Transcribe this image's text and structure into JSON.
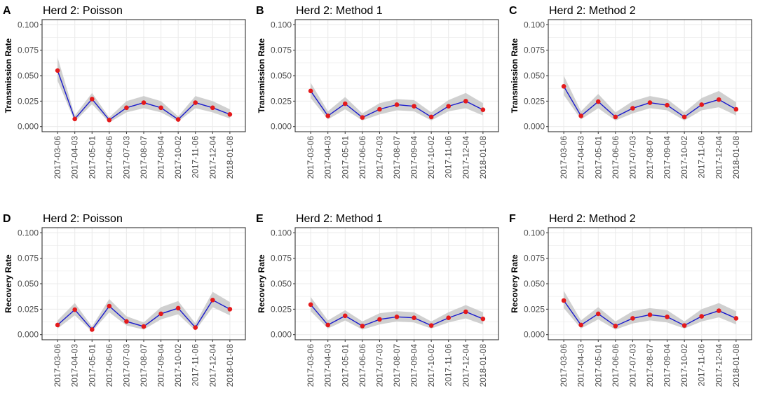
{
  "chart_data": [
    {
      "type": "line",
      "label": "A",
      "title": "Herd 2: Poisson",
      "ylabel": "Transmission Rate",
      "ylim": [
        0,
        0.1
      ],
      "yticks": [
        "0.000",
        "0.025",
        "0.050",
        "0.075",
        "0.100"
      ],
      "categories": [
        "2017-03-06",
        "2017-04-03",
        "2017-05-01",
        "2017-06-06",
        "2017-07-03",
        "2017-08-07",
        "2017-09-04",
        "2017-10-02",
        "2017-11-06",
        "2017-12-04",
        "2018-01-08"
      ],
      "values": [
        0.055,
        0.0075,
        0.027,
        0.0065,
        0.0185,
        0.0235,
        0.0185,
        0.007,
        0.0235,
        0.0185,
        0.012
      ],
      "lower": [
        0.045,
        0.005,
        0.022,
        0.004,
        0.014,
        0.018,
        0.014,
        0.005,
        0.018,
        0.014,
        0.008
      ],
      "upper": [
        0.068,
        0.011,
        0.033,
        0.009,
        0.025,
        0.03,
        0.025,
        0.01,
        0.03,
        0.025,
        0.017
      ]
    },
    {
      "type": "line",
      "label": "B",
      "title": "Herd 2: Method 1",
      "ylabel": "Transmission Rate",
      "ylim": [
        0,
        0.1
      ],
      "yticks": [
        "0.000",
        "0.025",
        "0.050",
        "0.075",
        "0.100"
      ],
      "categories": [
        "2017-03-06",
        "2017-04-03",
        "2017-05-01",
        "2017-06-06",
        "2017-07-03",
        "2017-08-07",
        "2017-09-04",
        "2017-10-02",
        "2017-11-06",
        "2017-12-04",
        "2018-01-08"
      ],
      "values": [
        0.035,
        0.0105,
        0.0225,
        0.009,
        0.017,
        0.0215,
        0.02,
        0.0095,
        0.02,
        0.025,
        0.0165
      ],
      "lower": [
        0.028,
        0.007,
        0.017,
        0.006,
        0.012,
        0.016,
        0.015,
        0.006,
        0.015,
        0.018,
        0.011
      ],
      "upper": [
        0.043,
        0.015,
        0.029,
        0.013,
        0.023,
        0.027,
        0.026,
        0.014,
        0.026,
        0.033,
        0.023
      ]
    },
    {
      "type": "line",
      "label": "C",
      "title": "Herd 2: Method 2",
      "ylabel": "Transmission Rate",
      "ylim": [
        0,
        0.1
      ],
      "yticks": [
        "0.000",
        "0.025",
        "0.050",
        "0.075",
        "0.100"
      ],
      "categories": [
        "2017-03-06",
        "2017-04-03",
        "2017-05-01",
        "2017-06-06",
        "2017-07-03",
        "2017-08-07",
        "2017-09-04",
        "2017-10-02",
        "2017-11-06",
        "2017-12-04",
        "2018-01-08"
      ],
      "values": [
        0.0395,
        0.0105,
        0.0245,
        0.0095,
        0.018,
        0.0235,
        0.021,
        0.0095,
        0.0215,
        0.0265,
        0.017
      ],
      "lower": [
        0.031,
        0.007,
        0.018,
        0.006,
        0.013,
        0.018,
        0.016,
        0.006,
        0.016,
        0.019,
        0.011
      ],
      "upper": [
        0.05,
        0.015,
        0.032,
        0.014,
        0.025,
        0.03,
        0.027,
        0.014,
        0.028,
        0.035,
        0.024
      ]
    },
    {
      "type": "line",
      "label": "D",
      "title": "Herd 2: Poisson",
      "ylabel": "Recovery Rate",
      "ylim": [
        0,
        0.1
      ],
      "yticks": [
        "0.000",
        "0.025",
        "0.050",
        "0.075",
        "0.100"
      ],
      "categories": [
        "2017-03-06",
        "2017-04-03",
        "2017-05-01",
        "2017-06-06",
        "2017-07-03",
        "2017-08-07",
        "2017-09-04",
        "2017-10-02",
        "2017-11-06",
        "2017-12-04",
        "2018-01-08"
      ],
      "values": [
        0.0095,
        0.0245,
        0.005,
        0.028,
        0.013,
        0.008,
        0.0205,
        0.026,
        0.007,
        0.034,
        0.025
      ],
      "lower": [
        0.006,
        0.019,
        0.003,
        0.022,
        0.009,
        0.005,
        0.015,
        0.02,
        0.004,
        0.027,
        0.019
      ],
      "upper": [
        0.014,
        0.031,
        0.008,
        0.035,
        0.018,
        0.012,
        0.027,
        0.033,
        0.011,
        0.042,
        0.032
      ]
    },
    {
      "type": "line",
      "label": "E",
      "title": "Herd 2: Method 1",
      "ylabel": "Recovery Rate",
      "ylim": [
        0,
        0.1
      ],
      "yticks": [
        "0.000",
        "0.025",
        "0.050",
        "0.075",
        "0.100"
      ],
      "categories": [
        "2017-03-06",
        "2017-04-03",
        "2017-05-01",
        "2017-06-06",
        "2017-07-03",
        "2017-08-07",
        "2017-09-04",
        "2017-10-02",
        "2017-11-06",
        "2017-12-04",
        "2018-01-08"
      ],
      "values": [
        0.0295,
        0.0095,
        0.0185,
        0.0085,
        0.015,
        0.0175,
        0.0165,
        0.009,
        0.0165,
        0.0225,
        0.0155
      ],
      "lower": [
        0.023,
        0.006,
        0.014,
        0.005,
        0.01,
        0.013,
        0.012,
        0.006,
        0.012,
        0.016,
        0.01
      ],
      "upper": [
        0.037,
        0.014,
        0.024,
        0.013,
        0.021,
        0.023,
        0.022,
        0.013,
        0.022,
        0.029,
        0.022
      ]
    },
    {
      "type": "line",
      "label": "F",
      "title": "Herd 2: Method 2",
      "ylabel": "Recovery Rate",
      "ylim": [
        0,
        0.1
      ],
      "yticks": [
        "0.000",
        "0.025",
        "0.050",
        "0.075",
        "0.100"
      ],
      "categories": [
        "2017-03-06",
        "2017-04-03",
        "2017-05-01",
        "2017-06-06",
        "2017-07-03",
        "2017-08-07",
        "2017-09-04",
        "2017-10-02",
        "2017-11-06",
        "2017-12-04",
        "2018-01-08"
      ],
      "values": [
        0.0335,
        0.0095,
        0.0205,
        0.0085,
        0.016,
        0.0195,
        0.0175,
        0.009,
        0.018,
        0.0235,
        0.016
      ],
      "lower": [
        0.026,
        0.006,
        0.015,
        0.005,
        0.011,
        0.014,
        0.012,
        0.006,
        0.013,
        0.017,
        0.01
      ],
      "upper": [
        0.043,
        0.014,
        0.027,
        0.013,
        0.023,
        0.026,
        0.024,
        0.013,
        0.025,
        0.031,
        0.023
      ]
    }
  ],
  "colors": {
    "line": "#1a1acc",
    "point": "#e41a1c",
    "ribbon": "#c8c8c8",
    "grid": "#ebebeb",
    "panel_border": "#333333"
  }
}
